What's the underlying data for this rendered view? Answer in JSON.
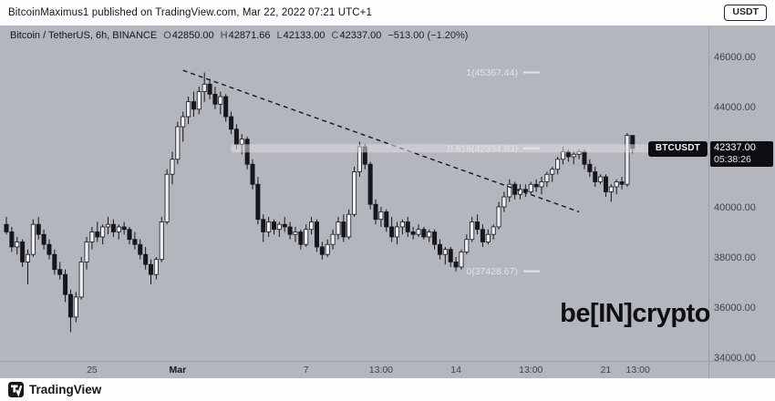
{
  "header": {
    "title": "BitcoinMaximus1 published on TradingView.com, Mar 22, 2022 07:21 UTC+1",
    "badge": "USDT"
  },
  "legend": {
    "symbol": "Bitcoin / TetherUS, 6h, BINANCE",
    "ohlc": [
      {
        "key": "O",
        "value": "42850.00"
      },
      {
        "key": "H",
        "value": "42871.66"
      },
      {
        "key": "L",
        "value": "42133.00"
      },
      {
        "key": "C",
        "value": "42337.00"
      }
    ],
    "change": "−513.00 (−1.20%)"
  },
  "price_scale": {
    "flag": "BTCUSDT",
    "last_price": "42337.00",
    "countdown": "05:38:26"
  },
  "watermark": {
    "pre": "be",
    "bracket_l": "[",
    "mid": "IN",
    "bracket_r": "]",
    "post": "crypto"
  },
  "footer": {
    "brand": "TradingView"
  },
  "colors": {
    "chart_bg": "#b3b6bd",
    "candle_up": "#eef0f2",
    "candle_down": "#15171c",
    "wick": "#15171c",
    "trendline": "#15171c",
    "fib_text": "#e2e4e7",
    "fib_band": "#dcdee2",
    "axis_text": "#3f434d",
    "axis_border": "#9da0a8",
    "text_dark": "#131722"
  },
  "chart_data": {
    "type": "candlestick",
    "symbol": "Bitcoin / TetherUS",
    "interval": "6h",
    "exchange": "BINANCE",
    "ylim": [
      33850,
      47240
    ],
    "y_ticks": [
      46000,
      44000,
      42000,
      40000,
      38000,
      36000,
      34000
    ],
    "time_labels": [
      {
        "i": 16,
        "t": "25"
      },
      {
        "i": 32,
        "t": "Mar",
        "bold": true
      },
      {
        "i": 56,
        "t": "7"
      },
      {
        "i": 70,
        "t": "13:00"
      },
      {
        "i": 84,
        "t": "14"
      },
      {
        "i": 98,
        "t": "13:00"
      },
      {
        "i": 112,
        "t": "21"
      },
      {
        "i": 118,
        "t": "13:00"
      }
    ],
    "candles": [
      [
        39300,
        39600,
        38900,
        39000
      ],
      [
        39000,
        39200,
        38200,
        38400
      ],
      [
        38400,
        38800,
        38100,
        38600
      ],
      [
        38600,
        38700,
        37600,
        37800
      ],
      [
        37800,
        38300,
        36900,
        38100
      ],
      [
        38100,
        39500,
        38000,
        39300
      ],
      [
        39300,
        39600,
        38700,
        38900
      ],
      [
        38900,
        39100,
        38300,
        38500
      ],
      [
        38500,
        38700,
        37900,
        38100
      ],
      [
        38100,
        38300,
        37300,
        37500
      ],
      [
        37500,
        37800,
        37100,
        37300
      ],
      [
        37300,
        37500,
        36200,
        36500
      ],
      [
        36500,
        36700,
        35000,
        35600
      ],
      [
        35600,
        36600,
        35400,
        36400
      ],
      [
        36400,
        38000,
        36300,
        37800
      ],
      [
        37800,
        38800,
        37500,
        38600
      ],
      [
        38600,
        39200,
        38300,
        39000
      ],
      [
        39000,
        39400,
        38600,
        38800
      ],
      [
        38800,
        39300,
        38500,
        39200
      ],
      [
        39200,
        39600,
        38900,
        39300
      ],
      [
        39300,
        39500,
        38800,
        39000
      ],
      [
        39000,
        39300,
        38700,
        39200
      ],
      [
        39200,
        39400,
        38900,
        39100
      ],
      [
        39100,
        39200,
        38500,
        38700
      ],
      [
        38700,
        39000,
        38300,
        38500
      ],
      [
        38500,
        38700,
        37900,
        38100
      ],
      [
        38100,
        38400,
        37500,
        37700
      ],
      [
        37700,
        37900,
        36900,
        37300
      ],
      [
        37300,
        38000,
        37100,
        37900
      ],
      [
        37900,
        39600,
        37800,
        39400
      ],
      [
        39400,
        41500,
        39300,
        41300
      ],
      [
        41300,
        42200,
        40900,
        41900
      ],
      [
        41900,
        43400,
        41700,
        43200
      ],
      [
        43200,
        43800,
        42600,
        43600
      ],
      [
        43600,
        44400,
        43300,
        44200
      ],
      [
        44200,
        44600,
        43600,
        43900
      ],
      [
        43900,
        44800,
        43700,
        44600
      ],
      [
        44600,
        45367.44,
        44200,
        44900
      ],
      [
        44900,
        45100,
        44300,
        44500
      ],
      [
        44500,
        44800,
        43900,
        44100
      ],
      [
        44100,
        44600,
        43700,
        44400
      ],
      [
        44400,
        44500,
        43400,
        43600
      ],
      [
        43600,
        43800,
        42900,
        43100
      ],
      [
        43100,
        43300,
        42300,
        42500
      ],
      [
        42500,
        42900,
        42100,
        42700
      ],
      [
        42700,
        42800,
        41500,
        41700
      ],
      [
        41700,
        41900,
        40700,
        40900
      ],
      [
        40900,
        41200,
        39300,
        39500
      ],
      [
        39500,
        39700,
        38600,
        39000
      ],
      [
        39000,
        39600,
        38800,
        39400
      ],
      [
        39400,
        39500,
        38900,
        39100
      ],
      [
        39100,
        39400,
        38800,
        39300
      ],
      [
        39300,
        39600,
        39000,
        39200
      ],
      [
        39200,
        39400,
        38700,
        38900
      ],
      [
        38900,
        39200,
        38600,
        39000
      ],
      [
        39000,
        39100,
        38300,
        38500
      ],
      [
        38500,
        39300,
        38400,
        39100
      ],
      [
        39100,
        39600,
        38900,
        39400
      ],
      [
        39400,
        39500,
        38200,
        38400
      ],
      [
        38400,
        38600,
        37900,
        38100
      ],
      [
        38100,
        38700,
        38000,
        38500
      ],
      [
        38500,
        39100,
        38300,
        38900
      ],
      [
        38900,
        39600,
        38700,
        39400
      ],
      [
        39400,
        39700,
        38600,
        38800
      ],
      [
        38800,
        39900,
        38700,
        39700
      ],
      [
        39700,
        41600,
        39600,
        41400
      ],
      [
        41400,
        42600,
        41200,
        42400
      ],
      [
        42400,
        42500,
        41500,
        41700
      ],
      [
        41700,
        41800,
        39900,
        40100
      ],
      [
        40100,
        40300,
        39300,
        39500
      ],
      [
        39500,
        40000,
        39200,
        39800
      ],
      [
        39800,
        39900,
        39000,
        39200
      ],
      [
        39200,
        39600,
        38600,
        38800
      ],
      [
        38800,
        39400,
        38500,
        39200
      ],
      [
        39200,
        39500,
        38900,
        39400
      ],
      [
        39400,
        39600,
        38800,
        39000
      ],
      [
        39000,
        39200,
        38700,
        38900
      ],
      [
        38900,
        39300,
        38800,
        39100
      ],
      [
        39100,
        39200,
        38700,
        38800
      ],
      [
        38800,
        39100,
        38600,
        39000
      ],
      [
        39000,
        39100,
        38300,
        38500
      ],
      [
        38500,
        38700,
        37900,
        38100
      ],
      [
        38100,
        38400,
        37700,
        38300
      ],
      [
        38300,
        38400,
        37600,
        37800
      ],
      [
        37800,
        38000,
        37428.67,
        37600
      ],
      [
        37600,
        38300,
        37500,
        38200
      ],
      [
        38200,
        38900,
        38100,
        38700
      ],
      [
        38700,
        39600,
        38600,
        39400
      ],
      [
        39400,
        39700,
        38900,
        39100
      ],
      [
        39100,
        39300,
        38400,
        38600
      ],
      [
        38600,
        39100,
        38500,
        38900
      ],
      [
        38900,
        39300,
        38700,
        39200
      ],
      [
        39200,
        40200,
        39100,
        40000
      ],
      [
        40000,
        40600,
        39800,
        40400
      ],
      [
        40400,
        41100,
        40200,
        40900
      ],
      [
        40900,
        41000,
        40300,
        40500
      ],
      [
        40500,
        40900,
        40300,
        40700
      ],
      [
        40700,
        40900,
        40400,
        40600
      ],
      [
        40600,
        41000,
        40500,
        40900
      ],
      [
        40900,
        41100,
        40600,
        40800
      ],
      [
        40800,
        41200,
        40500,
        41000
      ],
      [
        41000,
        41400,
        40800,
        41300
      ],
      [
        41300,
        41600,
        41000,
        41500
      ],
      [
        41500,
        42000,
        41300,
        41900
      ],
      [
        41900,
        42400,
        41700,
        42200
      ],
      [
        42200,
        42300,
        41800,
        42000
      ],
      [
        42000,
        42200,
        41700,
        42100
      ],
      [
        42100,
        42300,
        41900,
        42200
      ],
      [
        42200,
        42300,
        41500,
        41700
      ],
      [
        41700,
        41900,
        41200,
        41400
      ],
      [
        41400,
        41600,
        40800,
        41000
      ],
      [
        41000,
        41300,
        40900,
        41200
      ],
      [
        41200,
        41300,
        40400,
        40600
      ],
      [
        40600,
        40900,
        40200,
        40800
      ],
      [
        40800,
        41100,
        40500,
        41000
      ],
      [
        41000,
        41200,
        40700,
        40900
      ],
      [
        40900,
        42950,
        40800,
        42850
      ],
      [
        42850,
        42871.66,
        42133,
        42337
      ]
    ],
    "fib": {
      "band_start_index": 42,
      "levels": [
        {
          "label": "1(45367.44)",
          "value": 1,
          "price": 45367.44
        },
        {
          "label": "0.618(42334.83)",
          "value": 0.618,
          "price": 42334.83,
          "band": true
        },
        {
          "label": "0(37428.67)",
          "value": 0,
          "price": 37428.67
        }
      ]
    },
    "trendline": {
      "from_index": 33,
      "from_price": 45450,
      "to_index": 107,
      "to_price": 39800,
      "dashed": true
    }
  }
}
